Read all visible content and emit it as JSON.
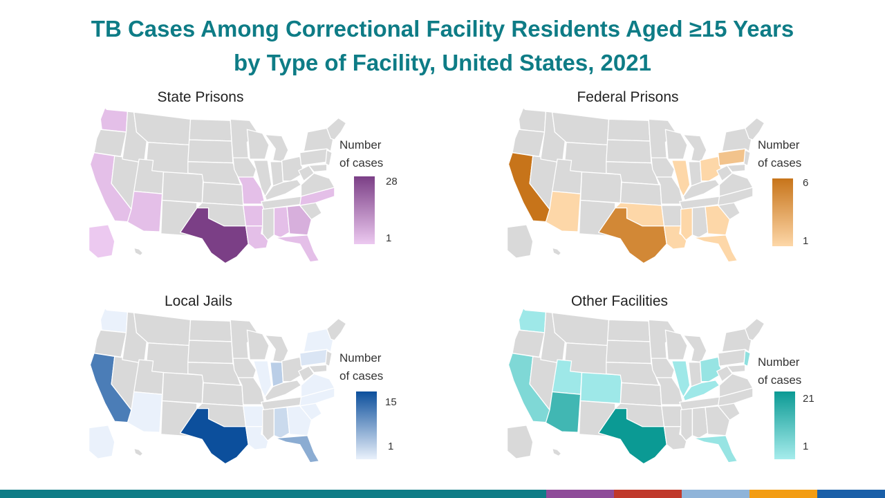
{
  "title_line1": "TB Cases Among Correctional Facility Residents Aged ≥15 Years",
  "title_line2": "by Type of Facility, United States, 2021",
  "legend_label_line1": "Number",
  "legend_label_line2": "of cases",
  "colors": {
    "base": "#d9d9d9",
    "title": "#0e7c86",
    "footer": [
      "#0e7c86",
      "#8e4b99",
      "#c0392b",
      "#8fb4d9",
      "#f39c12",
      "#1a5fa8"
    ]
  },
  "panels": [
    {
      "title": "State Prisons",
      "legend": {
        "max": "28",
        "min": "1",
        "color_low": "#ecc9f0",
        "color_high": "#7b3f86"
      },
      "states": {
        "WA": 3,
        "CA": 3,
        "AZ": 3,
        "TX": 28,
        "MO": 3,
        "AR": 3,
        "LA": 3,
        "AL": 3,
        "GA": 6,
        "FL": 3,
        "NC": 3,
        "AK": 1
      }
    },
    {
      "title": "Federal Prisons",
      "legend": {
        "max": "6",
        "min": "1",
        "color_low": "#fdd7a8",
        "color_high": "#c7741a"
      },
      "states": {
        "CA": 6,
        "AZ": 1,
        "TX": 5,
        "OK": 1,
        "IL": 1,
        "OH": 1,
        "PA": 2,
        "LA": 1,
        "MS": 1,
        "GA": 1,
        "FL": 1
      }
    },
    {
      "title": "Local Jails",
      "legend": {
        "max": "15",
        "min": "1",
        "color_low": "#eaf1fb",
        "color_high": "#0c4f9c"
      },
      "states": {
        "WA": 1,
        "CA": 11,
        "AZ": 1,
        "TX": 15,
        "AR": 1,
        "LA": 1,
        "IL": 1,
        "IN": 4,
        "AL": 3,
        "GA": 1,
        "FL": 7,
        "SC": 1,
        "NC": 1,
        "VA": 1,
        "PA": 2,
        "NY": 1,
        "AK": 1
      }
    },
    {
      "title": "Other Facilities",
      "legend": {
        "max": "21",
        "min": "1",
        "color_low": "#a6ecec",
        "color_high": "#0b9a94"
      },
      "states": {
        "WA": 2,
        "CA": 6,
        "AZ": 14,
        "UT": 2,
        "CO": 2,
        "TX": 21,
        "IL": 2,
        "OH": 3,
        "KY": 2,
        "NJ": 4,
        "FL": 3
      }
    }
  ]
}
